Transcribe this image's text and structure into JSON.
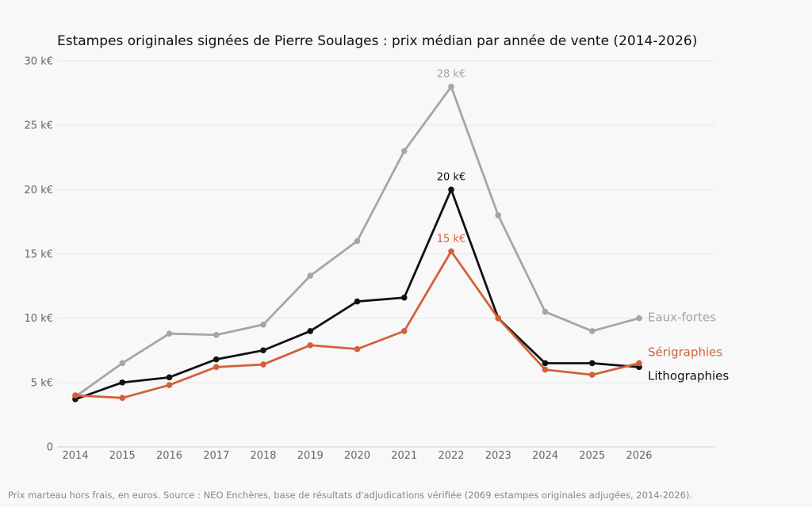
{
  "chart_data": {
    "type": "line",
    "title": "Estampes originales signées de Pierre Soulages : prix médian par année de vente (2014-2026)",
    "xlabel": "",
    "ylabel": "",
    "x": [
      2014,
      2015,
      2016,
      2017,
      2018,
      2019,
      2020,
      2021,
      2022,
      2023,
      2024,
      2025,
      2026
    ],
    "ylim": [
      0,
      30000
    ],
    "y_ticks": [
      0,
      5000,
      10000,
      15000,
      20000,
      25000,
      30000
    ],
    "y_tick_labels": [
      "0",
      "5 k€",
      "10 k€",
      "15 k€",
      "20 k€",
      "25 k€",
      "30 k€"
    ],
    "grid": true,
    "legend": "direct labels at line ends",
    "series": [
      {
        "name": "Eaux-fortes",
        "color": "#a6a6a6",
        "values": [
          3900,
          6500,
          8800,
          8700,
          9500,
          13300,
          16000,
          23000,
          28000,
          18000,
          10500,
          9000,
          10000
        ],
        "peak_label": "28 k€"
      },
      {
        "name": "Lithographies",
        "color": "#111111",
        "values": [
          3700,
          5000,
          5400,
          6800,
          7500,
          9000,
          11300,
          11600,
          20000,
          10000,
          6500,
          6500,
          6200
        ],
        "peak_label": "20 k€"
      },
      {
        "name": "Sérigraphies",
        "color": "#d4603a",
        "values": [
          4000,
          3800,
          4800,
          6200,
          6400,
          7900,
          7600,
          9000,
          15200,
          10000,
          6000,
          5600,
          6500
        ],
        "peak_label": "15 k€"
      }
    ]
  },
  "footnote": "Prix marteau hors frais, en euros. Source : NEO Enchères, base de résultats d'adjudications vérifiée (2069 estampes originales adjugées, 2014-2026)."
}
